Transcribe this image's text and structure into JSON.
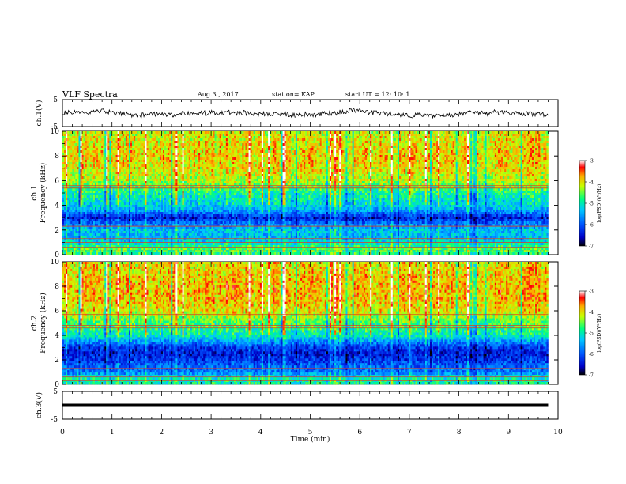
{
  "chart_data": {
    "type": "heatmap",
    "title": "VLF Spectra",
    "date": "Aug.3 , 2017",
    "station": "station= KAP",
    "start": "start UT = 12: 10: 1",
    "xlabel": "Time (min)",
    "xlim": [
      0,
      10
    ],
    "xticks": [
      "0",
      "1",
      "2",
      "3",
      "4",
      "5",
      "6",
      "7",
      "8",
      "9",
      "10"
    ],
    "data_end_min": 9.8,
    "panels": [
      {
        "name": "ch1-waveform",
        "type": "line",
        "ylabel": "ch.1(V)",
        "ylim": [
          -5,
          5
        ],
        "yticks": [
          "5",
          "-5"
        ],
        "description_of_signal": "noisy waveform around 0 V, amplitude about ±2 V"
      },
      {
        "name": "ch1-spectrogram",
        "type": "heatmap",
        "ylabel_top": "ch.1",
        "ylabel": "Frequency (kHz)",
        "ylim": [
          0,
          10
        ],
        "yticks": [
          "0",
          "2",
          "4",
          "6",
          "8",
          "10"
        ],
        "colorbar_label": "log(PSD)(V²/Hz)",
        "colorbar_range": [
          -7,
          -3
        ],
        "colorbar_ticks": [
          "-3",
          "-4",
          "-5",
          "-6",
          "-7"
        ],
        "freq_profile_khz": [
          [
            0.0,
            -4.8
          ],
          [
            0.5,
            -4.6
          ],
          [
            1.0,
            -5.2
          ],
          [
            1.5,
            -5.4
          ],
          [
            2.0,
            -5.3
          ],
          [
            2.5,
            -5.8
          ],
          [
            3.0,
            -6.4
          ],
          [
            3.5,
            -5.6
          ],
          [
            4.0,
            -5.2
          ],
          [
            5.0,
            -4.9
          ],
          [
            6.0,
            -4.2
          ],
          [
            7.0,
            -4.0
          ],
          [
            8.0,
            -3.9
          ],
          [
            9.0,
            -4.0
          ],
          [
            10.0,
            -4.1
          ]
        ],
        "lines_khz": [
          0.3,
          0.6,
          1.0,
          1.3,
          2.3,
          5.4,
          5.6
        ]
      },
      {
        "name": "ch2-spectrogram",
        "type": "heatmap",
        "ylabel_top": "ch.2",
        "ylabel": "Frequency (kHz)",
        "ylim": [
          0,
          10
        ],
        "yticks": [
          "0",
          "2",
          "4",
          "6",
          "8",
          "10"
        ],
        "colorbar_label": "log(PSD)(V²/Hz)",
        "colorbar_range": [
          -7,
          -3
        ],
        "colorbar_ticks": [
          "-3",
          "-4",
          "-5",
          "-6",
          "-7"
        ],
        "freq_profile_khz": [
          [
            0.0,
            -4.9
          ],
          [
            0.5,
            -5.0
          ],
          [
            1.0,
            -5.8
          ],
          [
            1.5,
            -5.9
          ],
          [
            2.0,
            -6.2
          ],
          [
            2.5,
            -6.4
          ],
          [
            3.0,
            -6.2
          ],
          [
            3.5,
            -5.6
          ],
          [
            4.0,
            -5.0
          ],
          [
            5.0,
            -4.6
          ],
          [
            6.0,
            -4.0
          ],
          [
            7.0,
            -3.8
          ],
          [
            8.0,
            -3.8
          ],
          [
            9.0,
            -3.9
          ],
          [
            10.0,
            -4.0
          ]
        ],
        "lines_khz": [
          0.3,
          0.6,
          1.3,
          1.9,
          4.6,
          4.8,
          5.7
        ]
      },
      {
        "name": "ch3-waveform",
        "type": "line",
        "ylabel": "ch.3(V)",
        "ylim": [
          -5,
          5
        ],
        "yticks": [
          "5",
          "-5"
        ],
        "constant_value": 0
      }
    ]
  }
}
